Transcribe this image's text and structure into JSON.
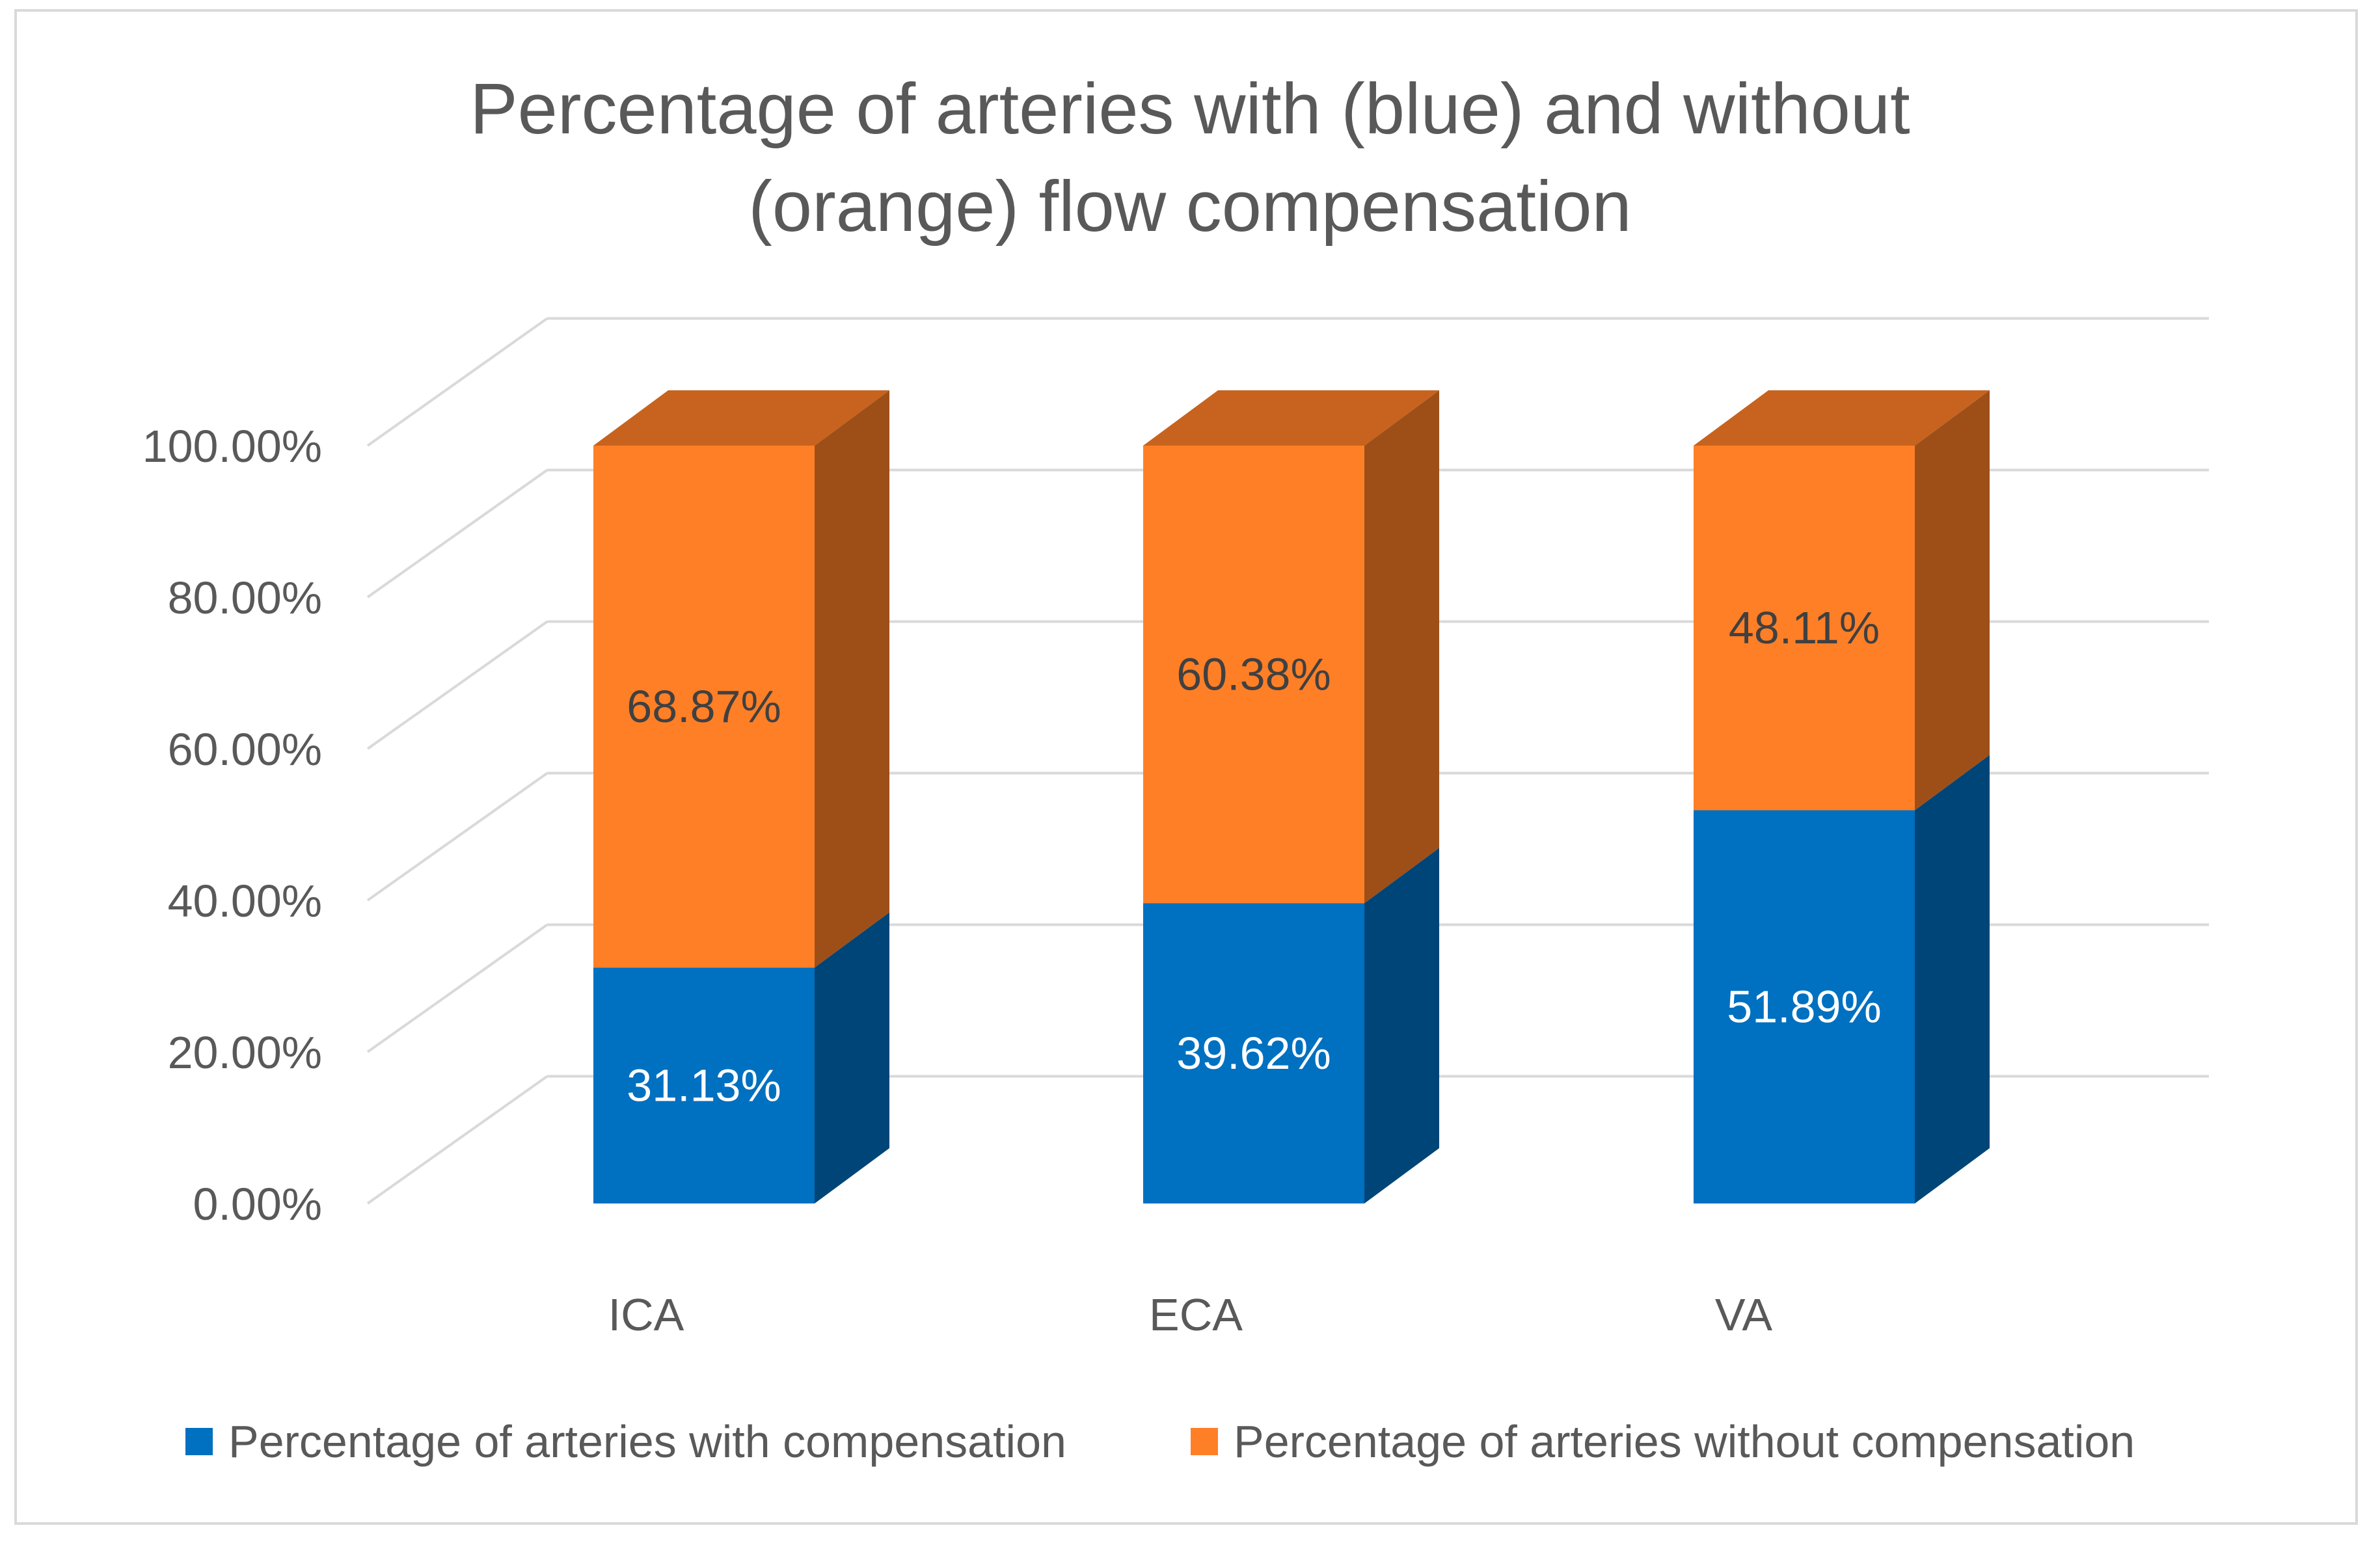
{
  "chart_data": {
    "type": "bar",
    "stacked": true,
    "style": "3d",
    "title_lines": [
      "Percentage of arteries with (blue) and without",
      "(orange) flow compensation"
    ],
    "categories": [
      "ICA",
      "ECA",
      "VA"
    ],
    "series": [
      {
        "name": "Percentage of arteries with compensation",
        "values": [
          31.13,
          39.62,
          51.89
        ],
        "labels": [
          "31.13%",
          "39.62%",
          "51.89%"
        ],
        "color": "#0070c0"
      },
      {
        "name": "Percentage of arteries without compensation",
        "values": [
          68.87,
          60.38,
          48.11
        ],
        "labels": [
          "68.87%",
          "60.38%",
          "48.11%"
        ],
        "color": "#ff7f27"
      }
    ],
    "y_ticks": [
      {
        "value": 0,
        "label": "0.00%"
      },
      {
        "value": 20,
        "label": "20.00%"
      },
      {
        "value": 40,
        "label": "40.00%"
      },
      {
        "value": 60,
        "label": "60.00%"
      },
      {
        "value": 80,
        "label": "80.00%"
      },
      {
        "value": 100,
        "label": "100.00%"
      }
    ],
    "ylim": [
      0,
      100
    ],
    "grid": true,
    "legend_position": "bottom"
  }
}
